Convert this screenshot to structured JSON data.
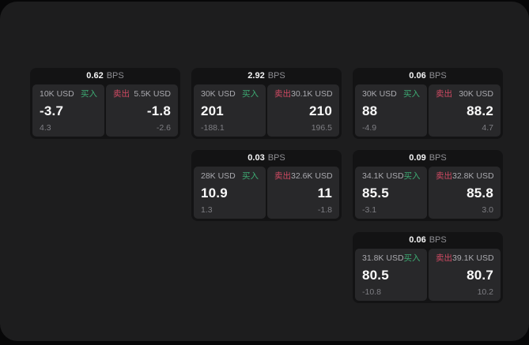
{
  "labels": {
    "bps_unit": "BPS",
    "buy": "买入",
    "sell": "卖出"
  },
  "colors": {
    "buy": "#3dab73",
    "sell": "#d04a63",
    "window_bg": "#1d1d1e",
    "card_bg": "#131314",
    "panel_bg": "#28282a"
  },
  "cards": [
    {
      "bps": "0.62",
      "col": 1,
      "row": 1,
      "buy": {
        "amount": "10K USD",
        "price": "-3.7",
        "sub": "4.3"
      },
      "sell": {
        "amount": "5.5K USD",
        "price": "-1.8",
        "sub": "-2.6"
      }
    },
    {
      "bps": "2.92",
      "col": 2,
      "row": 1,
      "buy": {
        "amount": "30K USD",
        "price": "201",
        "sub": "-188.1"
      },
      "sell": {
        "amount": "30.1K USD",
        "price": "210",
        "sub": "196.5"
      }
    },
    {
      "bps": "0.06",
      "col": 3,
      "row": 1,
      "buy": {
        "amount": "30K USD",
        "price": "88",
        "sub": "-4.9"
      },
      "sell": {
        "amount": "30K USD",
        "price": "88.2",
        "sub": "4.7"
      }
    },
    {
      "bps": "0.03",
      "col": 2,
      "row": 2,
      "buy": {
        "amount": "28K USD",
        "price": "10.9",
        "sub": "1.3"
      },
      "sell": {
        "amount": "32.6K USD",
        "price": "11",
        "sub": "-1.8"
      }
    },
    {
      "bps": "0.09",
      "col": 3,
      "row": 2,
      "buy": {
        "amount": "34.1K USD",
        "price": "85.5",
        "sub": "-3.1"
      },
      "sell": {
        "amount": "32.8K USD",
        "price": "85.8",
        "sub": "3.0"
      }
    },
    {
      "bps": "0.06",
      "col": 3,
      "row": 3,
      "buy": {
        "amount": "31.8K USD",
        "price": "80.5",
        "sub": "-10.8"
      },
      "sell": {
        "amount": "39.1K USD",
        "price": "80.7",
        "sub": "10.2"
      }
    }
  ]
}
